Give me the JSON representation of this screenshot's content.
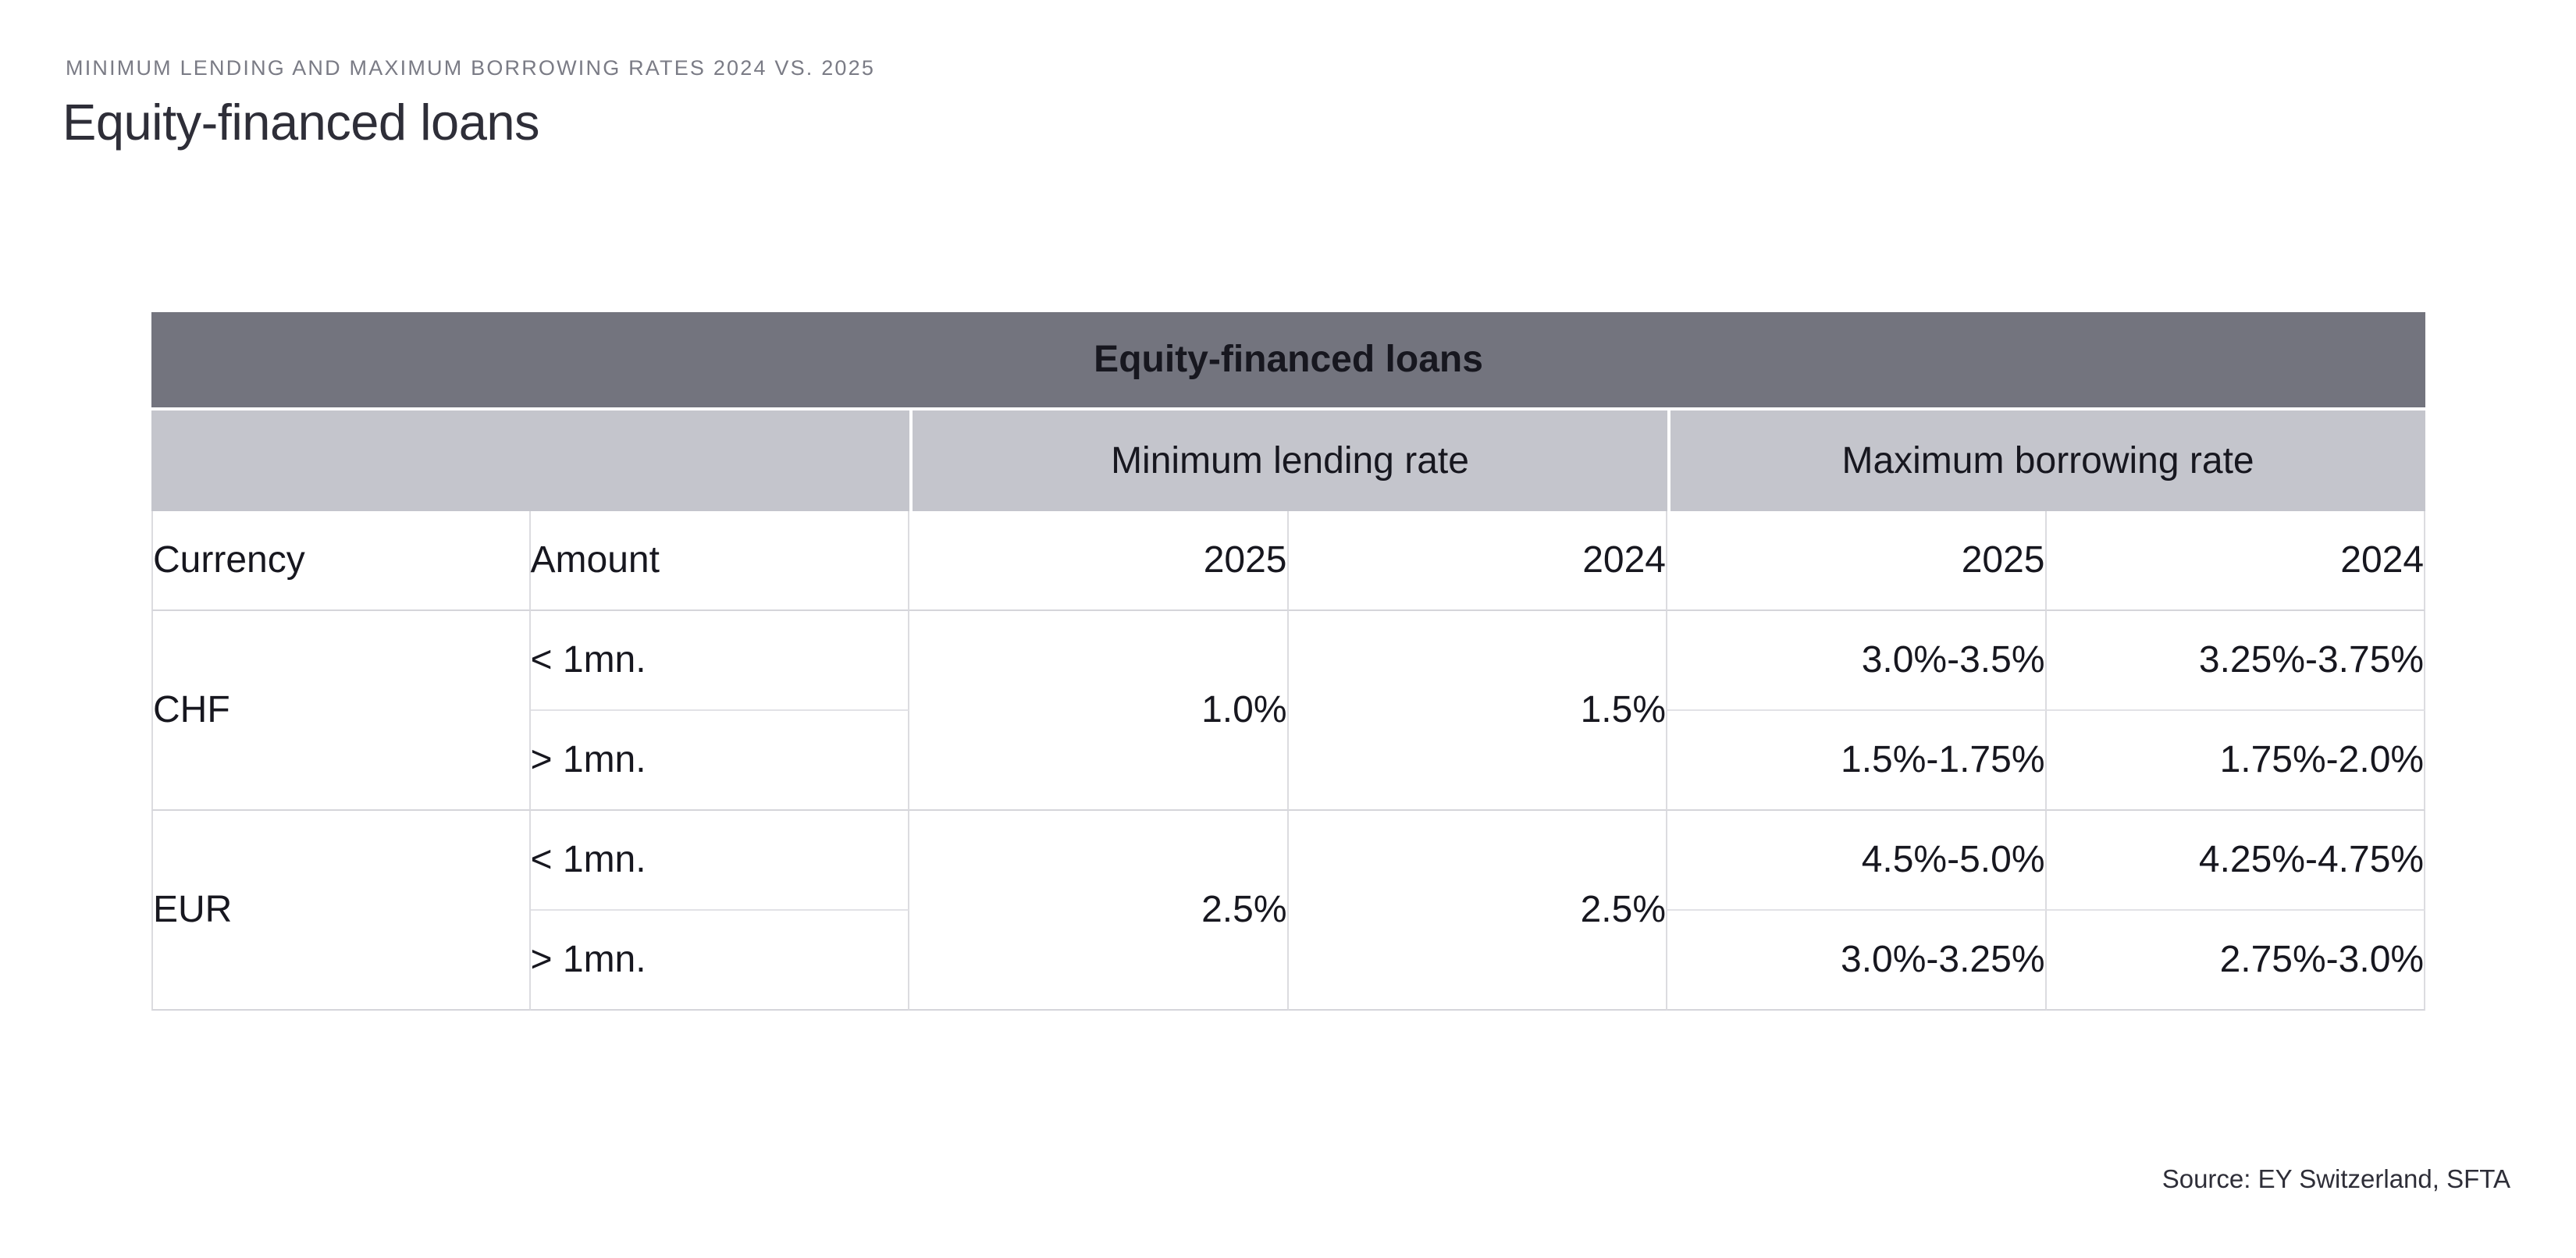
{
  "page": {
    "kicker": "MINIMUM LENDING AND MAXIMUM BORROWING RATES 2024 VS. 2025",
    "title": "Equity-financed loans",
    "source": "Source: EY Switzerland, SFTA"
  },
  "table": {
    "title": "Equity-financed loans",
    "group_min": "Minimum lending rate",
    "group_max": "Maximum borrowing rate",
    "headers": {
      "currency": "Currency",
      "amount": "Amount",
      "y2025": "2025",
      "y2024": "2024"
    },
    "chf": {
      "label": "CHF",
      "min2025": "1.0%",
      "min2024": "1.5%",
      "lt": {
        "amount": "< 1mn.",
        "max2025": "3.0%-3.5%",
        "max2024": "3.25%-3.75%"
      },
      "gt": {
        "amount": "> 1mn.",
        "max2025": "1.5%-1.75%",
        "max2024": "1.75%-2.0%"
      }
    },
    "eur": {
      "label": "EUR",
      "min2025": "2.5%",
      "min2024": "2.5%",
      "lt": {
        "amount": "< 1mn.",
        "max2025": "4.5%-5.0%",
        "max2024": "4.25%-4.75%"
      },
      "gt": {
        "amount": "> 1mn.",
        "max2025": "3.0%-3.25%",
        "max2024": "2.75%-3.0%"
      }
    },
    "colors": {
      "band_bg": "#73747e",
      "band_text": "#ffffff",
      "group_bg": "#c4c5cc",
      "text": "#17171f",
      "line_major": "#d5d5da",
      "line_minor": "#e2e2e6"
    }
  },
  "chart_data": {
    "type": "table",
    "title": "Equity-financed loans",
    "kicker": "MINIMUM LENDING AND MAXIMUM BORROWING RATES 2024 VS. 2025",
    "source": "Source: EY Switzerland, SFTA",
    "column_groups": [
      {
        "label": "",
        "span": 2
      },
      {
        "label": "Minimum lending rate",
        "span": 2
      },
      {
        "label": "Maximum borrowing rate",
        "span": 2
      }
    ],
    "columns": [
      "Currency",
      "Amount",
      "2025",
      "2024",
      "2025",
      "2024"
    ],
    "rows": [
      [
        "CHF",
        "< 1mn.",
        "1.0%",
        "1.5%",
        "3.0%-3.5%",
        "3.25%-3.75%"
      ],
      [
        "CHF",
        "> 1mn.",
        "1.0%",
        "1.5%",
        "1.5%-1.75%",
        "1.75%-2.0%"
      ],
      [
        "EUR",
        "< 1mn.",
        "2.5%",
        "2.5%",
        "4.5%-5.0%",
        "4.25%-4.75%"
      ],
      [
        "EUR",
        "> 1mn.",
        "2.5%",
        "2.5%",
        "3.0%-3.25%",
        "2.75%-3.0%"
      ]
    ],
    "merged_cells": [
      "Currency labels (CHF, EUR) each span their two amount rows",
      "Minimum lending rate 2025/2024 values each span their currency's two amount rows"
    ],
    "layout_hints": {
      "year_columns_alignment": "right",
      "grid": "light gray lines"
    }
  }
}
